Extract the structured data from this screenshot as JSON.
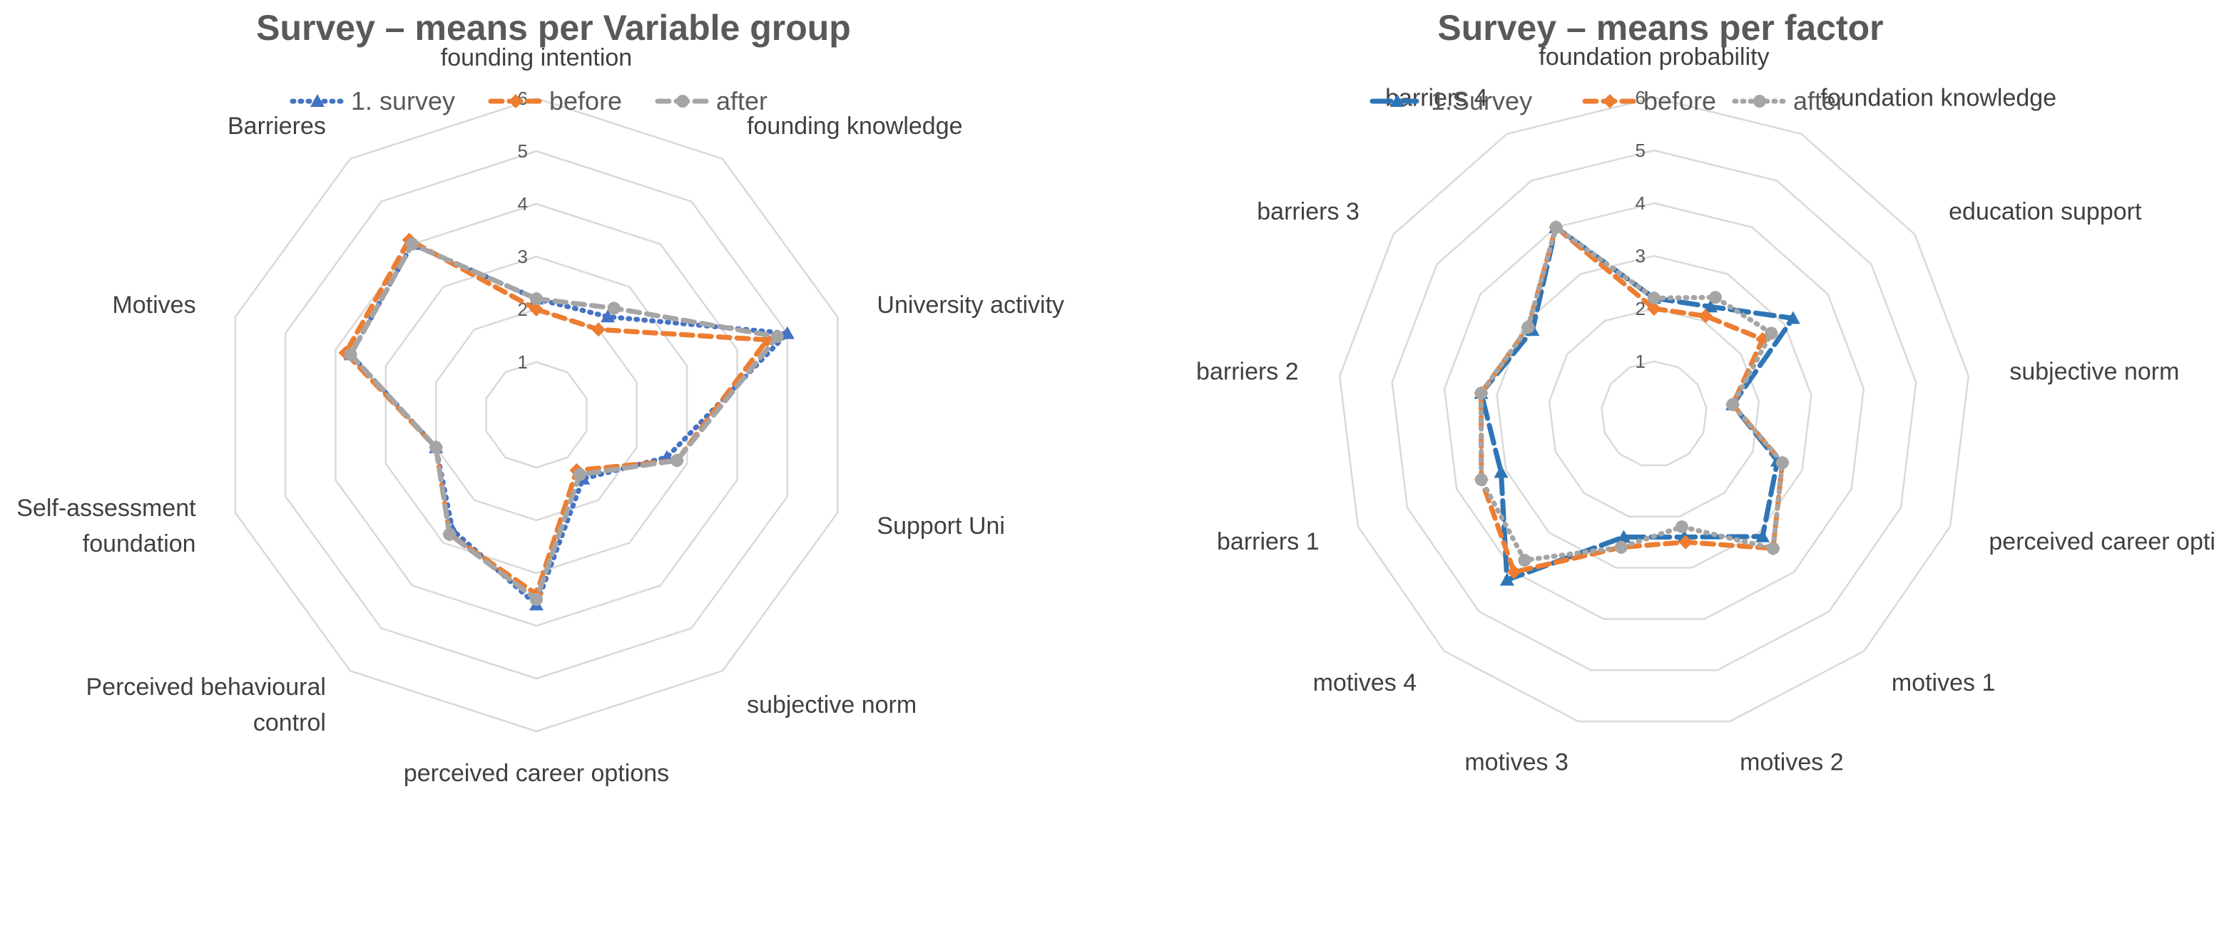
{
  "chart_data": [
    {
      "type": "radar",
      "title": "Survey – means per Variable group",
      "rmin": 0,
      "rmax": 6,
      "ticks": [
        "1",
        "2",
        "3",
        "4",
        "5",
        "6"
      ],
      "categories": [
        "founding intention",
        "founding knowledge",
        "University activity",
        "Support Uni",
        "subjective norm",
        "perceived career options",
        "Perceived behavioural control",
        "Self-assessment foundation",
        "Motives",
        "Barrieres"
      ],
      "category_lines": [
        [
          "founding intention"
        ],
        [
          "founding knowledge"
        ],
        [
          "University activity"
        ],
        [
          "Support Uni"
        ],
        [
          "subjective norm"
        ],
        [
          "perceived career options"
        ],
        [
          "Perceived behavioural",
          "control"
        ],
        [
          "Self-assessment",
          "foundation"
        ],
        [
          "Motives"
        ],
        [
          "Barrieres"
        ]
      ],
      "legend_position": "top",
      "series": [
        {
          "name": "1. survey",
          "color": "#4472C4",
          "dash": "dotted",
          "marker": "triangle",
          "values": [
            2.2,
            2.3,
            5.0,
            2.6,
            1.5,
            3.6,
            2.7,
            2.0,
            3.7,
            4.0
          ]
        },
        {
          "name": "before",
          "color": "#ED7D31",
          "dash": "dashed",
          "marker": "diamond",
          "values": [
            2.0,
            2.0,
            4.6,
            2.8,
            1.3,
            3.4,
            2.8,
            2.0,
            3.8,
            4.1
          ]
        },
        {
          "name": "after",
          "color": "#A5A5A5",
          "dash": "dashed",
          "marker": "circle",
          "values": [
            2.2,
            2.5,
            4.8,
            2.8,
            1.4,
            3.5,
            2.8,
            2.0,
            3.7,
            4.0
          ]
        }
      ]
    },
    {
      "type": "radar",
      "title": "Survey – means per factor",
      "rmin": 0,
      "rmax": 6,
      "ticks": [
        "1",
        "2",
        "3",
        "4",
        "5",
        "6"
      ],
      "categories": [
        "foundation probability",
        "foundation knowledge",
        "education support",
        "subjective norm",
        "perceived career options",
        "motives 1",
        "motives 2",
        "motives 3",
        "motives 4",
        "barriers 1",
        "barriers 2",
        "barriers 3",
        "barriers 4"
      ],
      "category_lines": [
        [
          "foundation probability"
        ],
        [
          "foundation knowledge"
        ],
        [
          "education support"
        ],
        [
          "subjective norm"
        ],
        [
          "perceived career options"
        ],
        [
          "motives 1"
        ],
        [
          "motives 2"
        ],
        [
          "motives 3"
        ],
        [
          "motives 4"
        ],
        [
          "barriers 1"
        ],
        [
          "barriers 2"
        ],
        [
          "barriers 3"
        ],
        [
          "barriers 4"
        ]
      ],
      "legend_position": "top",
      "series": [
        {
          "name": "1.Survey",
          "color": "#2E75B6",
          "dash": "longdash",
          "marker": "triangle",
          "values": [
            2.2,
            2.3,
            3.2,
            1.5,
            2.5,
            3.1,
            2.4,
            2.4,
            4.2,
            3.1,
            3.3,
            2.8,
            4.0
          ]
        },
        {
          "name": "before",
          "color": "#ED7D31",
          "dash": "dashed",
          "marker": "diamond",
          "values": [
            2.0,
            2.1,
            2.5,
            1.5,
            2.6,
            3.4,
            2.5,
            2.6,
            4.0,
            3.5,
            3.3,
            2.9,
            4.0
          ]
        },
        {
          "name": "after",
          "color": "#A5A5A5",
          "dash": "dotted",
          "marker": "circle",
          "values": [
            2.2,
            2.5,
            2.7,
            1.5,
            2.6,
            3.4,
            2.2,
            2.6,
            3.7,
            3.5,
            3.3,
            2.9,
            4.0
          ]
        }
      ]
    }
  ]
}
